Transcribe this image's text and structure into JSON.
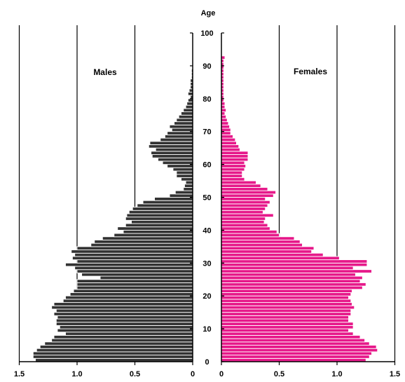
{
  "chart_data": {
    "type": "bar",
    "orientation": "horizontal",
    "title": "",
    "age_axis_label": "Age",
    "age_ticks": [
      0,
      10,
      20,
      30,
      40,
      50,
      60,
      70,
      80,
      90,
      100
    ],
    "value_ticks": [
      "1.5",
      "1.0",
      "0.5",
      "0",
      "0",
      "0.5",
      "1.0",
      "1.5"
    ],
    "xlim": [
      0,
      1.5
    ],
    "ylim": [
      0,
      100
    ],
    "grid": true,
    "colors": {
      "male": "#333333",
      "female": "#e6198a",
      "bar_gap": "#ffffff"
    },
    "series": [
      {
        "name": "Males",
        "values": [
          1.36,
          1.38,
          1.38,
          1.35,
          1.32,
          1.28,
          1.22,
          1.2,
          1.1,
          1.17,
          1.15,
          1.18,
          1.18,
          1.17,
          1.2,
          1.18,
          1.22,
          1.2,
          1.12,
          1.1,
          1.06,
          1.03,
          1.0,
          1.0,
          1.0,
          0.8,
          0.96,
          1.0,
          1.02,
          1.1,
          1.0,
          1.04,
          1.02,
          1.05,
          1.0,
          0.88,
          0.85,
          0.78,
          0.68,
          0.6,
          0.65,
          0.58,
          0.53,
          0.58,
          0.57,
          0.55,
          0.52,
          0.48,
          0.43,
          0.33,
          0.2,
          0.15,
          0.08,
          0.07,
          0.06,
          0.1,
          0.14,
          0.14,
          0.17,
          0.22,
          0.26,
          0.3,
          0.35,
          0.36,
          0.32,
          0.38,
          0.37,
          0.28,
          0.24,
          0.22,
          0.18,
          0.2,
          0.16,
          0.14,
          0.12,
          0.1,
          0.08,
          0.06,
          0.05,
          0.04,
          0.02,
          0.04,
          0.03,
          0.02,
          0.02,
          0.02,
          0.01,
          0.01,
          0.01,
          0.0,
          0.0,
          0.0,
          0.0,
          0.0,
          0.0,
          0.0,
          0.0,
          0.0,
          0.0,
          0.0
        ]
      },
      {
        "name": "Females",
        "values": [
          1.25,
          1.28,
          1.3,
          1.35,
          1.34,
          1.28,
          1.24,
          1.2,
          1.14,
          1.1,
          1.14,
          1.14,
          1.1,
          1.1,
          1.12,
          1.12,
          1.15,
          1.13,
          1.12,
          1.1,
          1.12,
          1.13,
          1.22,
          1.25,
          1.2,
          1.22,
          1.16,
          1.3,
          1.14,
          1.26,
          1.26,
          1.02,
          0.88,
          0.78,
          0.8,
          0.7,
          0.68,
          0.63,
          0.5,
          0.48,
          0.42,
          0.4,
          0.37,
          0.38,
          0.45,
          0.36,
          0.38,
          0.4,
          0.42,
          0.38,
          0.45,
          0.47,
          0.4,
          0.34,
          0.3,
          0.2,
          0.18,
          0.18,
          0.2,
          0.21,
          0.2,
          0.23,
          0.23,
          0.23,
          0.16,
          0.15,
          0.13,
          0.12,
          0.1,
          0.08,
          0.08,
          0.07,
          0.06,
          0.05,
          0.04,
          0.03,
          0.04,
          0.03,
          0.03,
          0.02,
          0.02,
          0.02,
          0.02,
          0.02,
          0.02,
          0.02,
          0.02,
          0.02,
          0.02,
          0.02,
          0.02,
          0.02,
          0.03,
          0.0,
          0.0,
          0.0,
          0.0,
          0.0,
          0.0,
          0.0
        ]
      }
    ]
  }
}
